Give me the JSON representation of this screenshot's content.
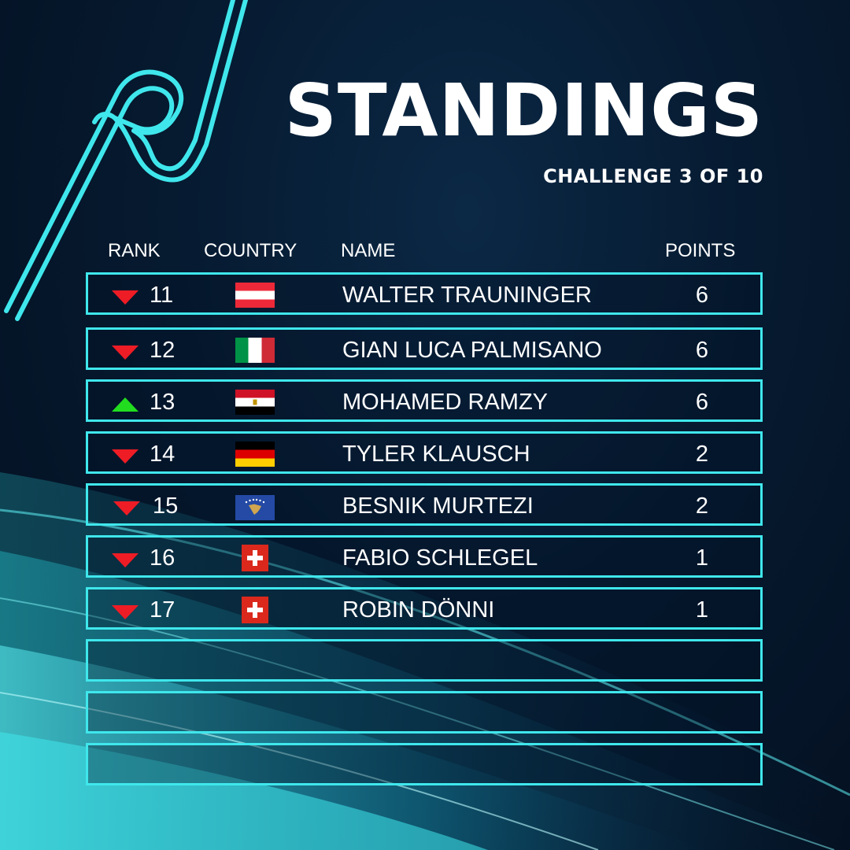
{
  "header": {
    "title": "STANDINGS",
    "subtitle": "CHALLENGE 3 OF 10"
  },
  "columns": {
    "rank": "RANK",
    "country": "COUNTRY",
    "name": "NAME",
    "points": "POINTS"
  },
  "colors": {
    "accent": "#3fe7ec",
    "up": "#22dd1f",
    "down": "#ee1c25",
    "background": "#061a30"
  },
  "rows": [
    {
      "rank": "11",
      "trend": "down",
      "flag": "austria-flag-icon",
      "name": "WALTER TRAUNINGER",
      "points": "6"
    },
    {
      "rank": "12",
      "trend": "down",
      "flag": "italy-flag-icon",
      "name": "GIAN LUCA PALMISANO",
      "points": "6"
    },
    {
      "rank": "13",
      "trend": "up",
      "flag": "egypt-flag-icon",
      "name": "MOHAMED RAMZY",
      "points": "6"
    },
    {
      "rank": "14",
      "trend": "down",
      "flag": "germany-flag-icon",
      "name": "TYLER KLAUSCH",
      "points": "2"
    },
    {
      "rank": "15",
      "trend": "down",
      "flag": "kosovo-flag-icon",
      "name": "BESNIK MURTEZI",
      "points": "2"
    },
    {
      "rank": "16",
      "trend": "down",
      "flag": "switzerland-flag-icon",
      "name": "FABIO SCHLEGEL",
      "points": "1"
    },
    {
      "rank": "17",
      "trend": "down",
      "flag": "switzerland-flag-icon",
      "name": "ROBIN DÖNNI",
      "points": "1"
    }
  ]
}
